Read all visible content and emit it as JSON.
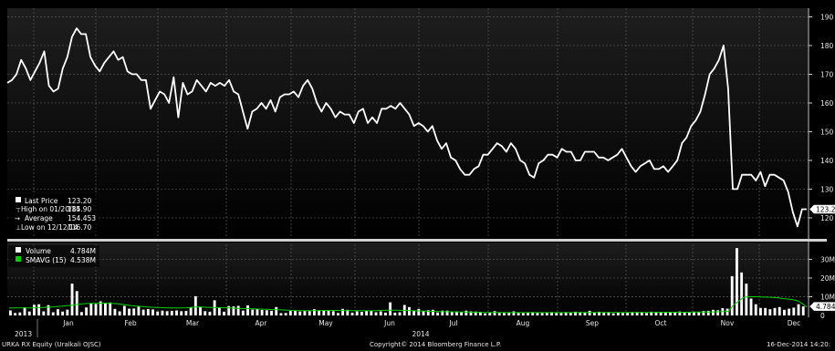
{
  "chart_data": [
    {
      "type": "line",
      "name": "price-panel",
      "x_ticks": [
        "Jan",
        "Feb",
        "Mar",
        "Apr",
        "May",
        "Jun",
        "Jul",
        "Aug",
        "Sep",
        "Oct",
        "Nov",
        "Dec"
      ],
      "year_labels": [
        "2013",
        "2014"
      ],
      "y_ticks": [
        120,
        130,
        140,
        150,
        160,
        170,
        180,
        190
      ],
      "ylim": [
        113,
        193
      ],
      "grid": true,
      "legend_position": "bottom-left",
      "current_value_label": "123.2",
      "legend": [
        {
          "icon": "square",
          "label": "Last Price",
          "value": "123.20"
        },
        {
          "icon": "high",
          "label": "High on 01/20/14",
          "value": "185.90"
        },
        {
          "icon": "avg",
          "label": "Average",
          "value": "154.453"
        },
        {
          "icon": "low",
          "label": "Low on 12/12/14",
          "value": "116.70"
        }
      ],
      "series": [
        {
          "name": "Last Price",
          "color": "#ffffff",
          "values": [
            167,
            168,
            170,
            175,
            172,
            168,
            171,
            174,
            178,
            166,
            164,
            165,
            172,
            176,
            183,
            186,
            184,
            184,
            176,
            173,
            171,
            174,
            176,
            178,
            175,
            176,
            171,
            170,
            170,
            168,
            168,
            158,
            161,
            164,
            163,
            160,
            169,
            155,
            167,
            163,
            164,
            168,
            166,
            164,
            167,
            166,
            167,
            166,
            168,
            164,
            163,
            157,
            151,
            157,
            158,
            160,
            158,
            161,
            157,
            162,
            163,
            163,
            164,
            162,
            166,
            168,
            165,
            160,
            157,
            160,
            158,
            155,
            157,
            156,
            156,
            153,
            157,
            158,
            153,
            155,
            153,
            158,
            158,
            159,
            158,
            160,
            158,
            156,
            152,
            153,
            152,
            150,
            152,
            147,
            144,
            146,
            141,
            140,
            137,
            135,
            135,
            137,
            138,
            142,
            142,
            144,
            146,
            145,
            143,
            146,
            144,
            140,
            139,
            135,
            134,
            139,
            140,
            142,
            142,
            141,
            144,
            143,
            143,
            140,
            140,
            143,
            143,
            143,
            141,
            141,
            140,
            141,
            142,
            144,
            141,
            138,
            136,
            138,
            139,
            140,
            137,
            137,
            138,
            136,
            138,
            140,
            146,
            148,
            152,
            154,
            157,
            163,
            170,
            172,
            175,
            180,
            165,
            130,
            130,
            135,
            135,
            135,
            133,
            136,
            131,
            135,
            135,
            134,
            133,
            129,
            122,
            117,
            123,
            123
          ]
        }
      ]
    },
    {
      "type": "bar",
      "name": "volume-panel",
      "y_ticks": [
        "10M",
        "20M",
        "30M"
      ],
      "y_tick_values": [
        10,
        20,
        30
      ],
      "ylim": [
        0,
        38
      ],
      "unit": "M",
      "current_value_label": "4.784",
      "legend_position": "top-left",
      "legend": [
        {
          "label": "Volume",
          "value": "4.784M",
          "color": "#ffffff"
        },
        {
          "label": "SMAVG (15)",
          "value": "4.538M",
          "color": "#00d000"
        }
      ],
      "series": [
        {
          "name": "Volume",
          "color": "#ffffff",
          "values": [
            2.7,
            1.3,
            1.6,
            4.4,
            2.1,
            5.7,
            6.0,
            2.2,
            5.5,
            1.7,
            3.3,
            2.1,
            3.1,
            17.0,
            13.0,
            1.8,
            4.3,
            6.5,
            6.1,
            7.5,
            6.5,
            6.9,
            3.5,
            2.2,
            5.1,
            3.6,
            3.7,
            4.7,
            3.1,
            3.4,
            3.2,
            2.1,
            2.6,
            2.3,
            2.5,
            2.7,
            2.3,
            2.4,
            4.4,
            10.3,
            4.7,
            2.3,
            2.0,
            8.1,
            4.4,
            2.0,
            5.0,
            4.8,
            5.1,
            2.6,
            5.4,
            3.1,
            3.5,
            2.9,
            2.8,
            2.5,
            4.5,
            1.2,
            1.3,
            2.4,
            2.4,
            2.1,
            2.4,
            2.3,
            3.3,
            2.8,
            2.6,
            2.8,
            2.3,
            1.3,
            3.5,
            3.0,
            1.5,
            2.2,
            1.9,
            2.7,
            2.6,
            1.7,
            2.2,
            1.5,
            7.0,
            1.5,
            1.7,
            5.6,
            4.5,
            2.6,
            3.5,
            2.5,
            2.8,
            3.0,
            1.6,
            2.6,
            2.6,
            1.9,
            2.2,
            1.7,
            2.6,
            2.2,
            2.1,
            1.9,
            1.1,
            1.4,
            2.3,
            1.3,
            1.3,
            1.4,
            2.2,
            1.3,
            1.2,
            1.6,
            1.8,
            1.5,
            1.3,
            1.5,
            1.8,
            1.3,
            1.3,
            1.8,
            1.5,
            2.0,
            1.8,
            1.5,
            2.5,
            1.6,
            2.0,
            1.5,
            1.8,
            1.1,
            1.5,
            1.3,
            1.5,
            1.8,
            1.8,
            1.8,
            1.3,
            2.0,
            1.8,
            1.5,
            1.8,
            1.6,
            1.5,
            2.1,
            1.8,
            1.5,
            2.0,
            1.8,
            2.4,
            2.5,
            3.0,
            2.8,
            3.9,
            3.6,
            21.0,
            36.0,
            23.0,
            17.0,
            9.0,
            6.0,
            4.0,
            4.0,
            3.3,
            4.0,
            4.5,
            3.0,
            3.6,
            4.2,
            6.0,
            4.8
          ]
        },
        {
          "name": "SMAVG (15)",
          "color": "#00d000",
          "values": [
            4.0,
            4.0,
            4.0,
            4.0,
            4.0,
            4.1,
            4.2,
            4.3,
            4.5,
            4.6,
            4.8,
            5.0,
            5.2,
            5.5,
            6.0,
            6.2,
            6.4,
            6.5,
            6.5,
            6.6,
            6.6,
            6.5,
            6.3,
            6.0,
            5.6,
            5.2,
            5.0,
            4.8,
            4.6,
            4.4,
            4.3,
            4.2,
            4.1,
            4.0,
            4.0,
            4.0,
            4.1,
            4.3,
            4.5,
            4.5,
            4.4,
            4.3,
            4.2,
            4.2,
            4.1,
            4.0,
            3.9,
            3.8,
            3.7,
            3.6,
            3.5,
            3.4,
            3.3,
            3.2,
            3.1,
            3.0,
            2.9,
            2.8,
            2.7,
            2.6,
            2.6,
            2.6,
            2.6,
            2.6,
            2.7,
            2.7,
            2.7,
            2.7,
            2.7,
            2.6,
            2.6,
            2.6,
            2.6,
            2.5,
            2.5,
            2.6,
            2.7,
            2.8,
            2.8,
            2.8,
            2.7,
            2.7,
            2.6,
            2.5,
            2.4,
            2.3,
            2.2,
            2.2,
            2.1,
            2.0,
            2.0,
            1.9,
            1.9,
            1.8,
            1.8,
            1.7,
            1.7,
            1.6,
            1.6,
            1.6,
            1.6,
            1.5,
            1.5,
            1.5,
            1.5,
            1.5,
            1.5,
            1.5,
            1.5,
            1.5,
            1.5,
            1.5,
            1.5,
            1.5,
            1.5,
            1.5,
            1.5,
            1.6,
            1.6,
            1.6,
            1.6,
            1.6,
            1.6,
            1.6,
            1.6,
            1.6,
            1.6,
            1.6,
            1.6,
            1.6,
            1.6,
            1.6,
            1.7,
            1.7,
            1.7,
            1.7,
            1.7,
            1.7,
            1.7,
            1.7,
            1.8,
            1.8,
            1.8,
            1.9,
            1.9,
            2.0,
            2.1,
            2.2,
            5.5,
            7.5,
            9.5,
            10.0,
            10.0,
            10.0,
            9.8,
            9.8,
            9.6,
            9.5,
            9.0,
            8.8,
            8.5,
            8.0,
            6.5,
            4.5
          ]
        }
      ]
    }
  ],
  "footer": {
    "ticker": "URKA RX Equity (Uralkali OJSC)",
    "copyright": "Copyright© 2014 Bloomberg Finance L.P.",
    "timestamp": "16-Dec-2014 14:20:"
  },
  "colors": {
    "background_top": "#1a1a1a",
    "background_bottom": "#000000",
    "grid": "#5a5a5a",
    "separator": "#d0d0d0",
    "price_line": "#ffffff",
    "volume_bar": "#ffffff",
    "smavg_line": "#00d000"
  }
}
